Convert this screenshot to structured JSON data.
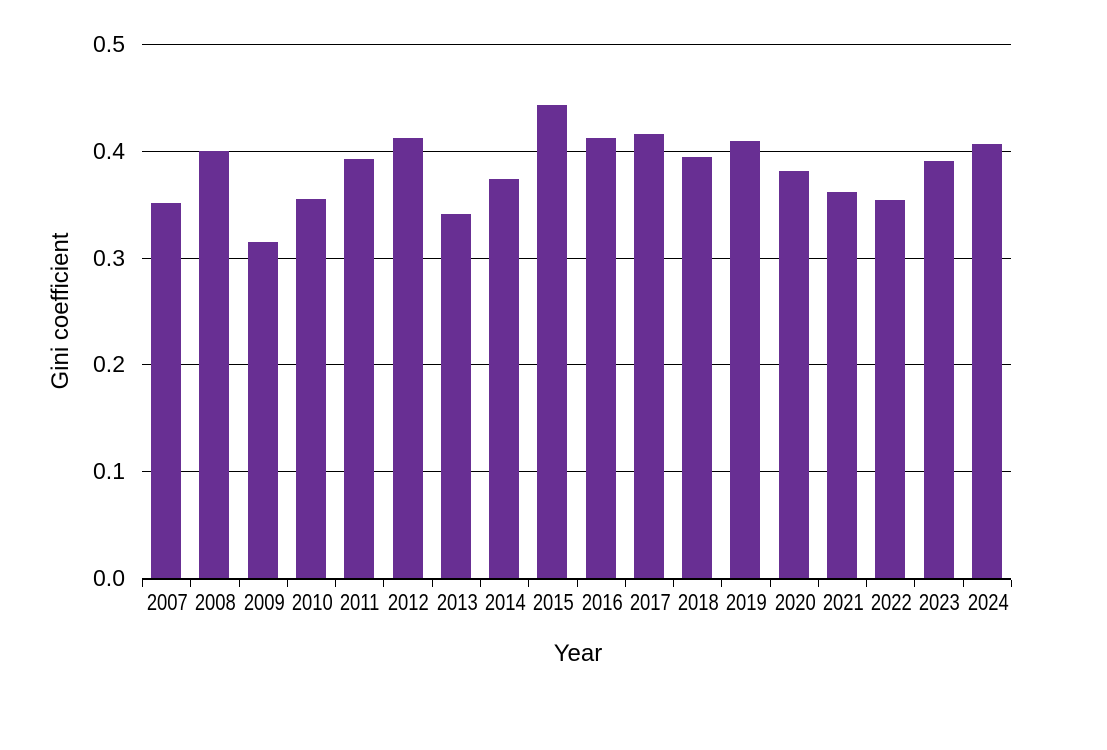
{
  "chart_data": {
    "type": "bar",
    "title": "",
    "xlabel": "Year",
    "ylabel": "Gini coefficient",
    "categories": [
      "2007",
      "2008",
      "2009",
      "2010",
      "2011",
      "2012",
      "2013",
      "2014",
      "2015",
      "2016",
      "2017",
      "2018",
      "2019",
      "2020",
      "2021",
      "2022",
      "2023",
      "2024"
    ],
    "values": [
      0.351,
      0.4,
      0.315,
      0.355,
      0.392,
      0.412,
      0.341,
      0.374,
      0.443,
      0.412,
      0.416,
      0.394,
      0.409,
      0.381,
      0.361,
      0.354,
      0.39,
      0.406
    ],
    "ylim": [
      0,
      0.5
    ],
    "yticks": [
      0.0,
      0.1,
      0.2,
      0.3,
      0.4,
      0.5
    ],
    "ytick_labels": [
      "0.0",
      "0.1",
      "0.2",
      "0.3",
      "0.4",
      "0.5"
    ],
    "grid": true,
    "legend_position": "none",
    "bar_color": "#682F93",
    "axis_color": "#000000",
    "background_color": "#ffffff"
  }
}
